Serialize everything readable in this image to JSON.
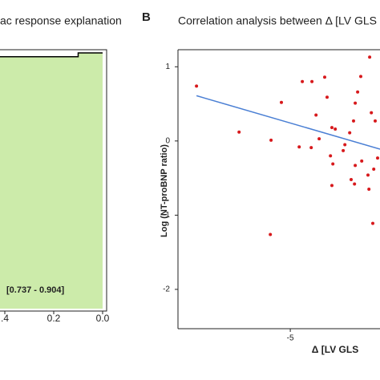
{
  "chart_data": [
    {
      "type": "area",
      "title": "ac response explanation",
      "x": [
        0.0,
        0.1,
        0.1,
        0.45
      ],
      "values": [
        1.0,
        1.0,
        0.985,
        0.985
      ],
      "color": "#000000",
      "fill": "#ccebaa",
      "xlim": [
        1.0,
        0.0
      ],
      "ylim": [
        0,
        1
      ],
      "xticks": [
        {
          "value": 0.4,
          "label": ".4"
        },
        0.2,
        {
          "value": 0.0,
          "label": "0.0"
        }
      ],
      "annotation": "[0.737 - 0.904]"
    },
    {
      "type": "scatter",
      "panel_label": "B",
      "title": "Correlation analysis between Δ [LV GLS",
      "xlabel": "Δ [LV GLS",
      "ylabel": "Log (NT-proBNP ratio)",
      "x": [
        -8.9,
        -7.13,
        -5.8,
        -5.83,
        -5.37,
        -4.5,
        -4.1,
        -3.57,
        -3.47,
        -3.93,
        -4.63,
        -4.13,
        -3.8,
        -3.27,
        -3.23,
        -3.13,
        -2.8,
        -2.73,
        -2.53,
        -2.37,
        -2.3,
        -2.2,
        -2.07,
        -1.7,
        -1.63,
        -1.47,
        -2.47,
        -2.33,
        -1.77,
        -1.73,
        -2.03,
        -2.3,
        -3.27,
        -1.53,
        -1.37,
        -1.57,
        -3.33
      ],
      "values": [
        0.74,
        0.12,
        0.01,
        -1.26,
        0.52,
        0.8,
        0.8,
        0.86,
        0.59,
        0.35,
        -0.08,
        -0.09,
        0.03,
        0.18,
        -0.31,
        0.16,
        -0.13,
        -0.05,
        0.11,
        0.27,
        0.51,
        0.66,
        0.87,
        1.13,
        0.38,
        0.27,
        -0.52,
        -0.58,
        -0.46,
        -0.65,
        -0.27,
        -0.33,
        -0.6,
        -0.38,
        -0.23,
        -1.11,
        -0.2
      ],
      "color": "#d7191c",
      "trendline": {
        "x": [
          -8.9,
          -1.27
        ],
        "values": [
          0.61,
          -0.11
        ],
        "color": "#4a7fd4"
      },
      "xlim": [
        -9.67,
        -1.27
      ],
      "ylim": [
        -2.53,
        1.23
      ],
      "xticks": [
        -5
      ],
      "yticks": [
        1,
        0,
        -1,
        -2
      ]
    }
  ]
}
